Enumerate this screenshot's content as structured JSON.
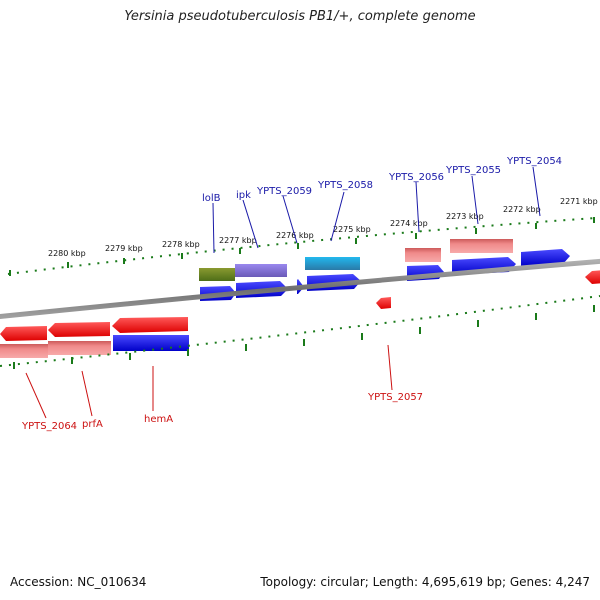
{
  "title": "Yersinia pseudotuberculosis PB1/+, complete genome",
  "footer": {
    "accession": "Accession: NC_010634",
    "summary": "Topology: circular; Length: 4,695,619 bp; Genes: 4,247"
  },
  "colors": {
    "forward_gene": "#0000dd",
    "reverse_gene": "#ee0000",
    "forward_label": "#1a1aa8",
    "reverse_label": "#cc1111",
    "ticks": "#1a7a1a",
    "backbone": "#8a8a8a"
  },
  "kbp_labels": [
    "2280 kbp",
    "2279 kbp",
    "2278 kbp",
    "2277 kbp",
    "2276 kbp",
    "2275 kbp",
    "2274 kbp",
    "2273 kbp",
    "2272 kbp",
    "2271 kbp"
  ],
  "forward_labels": [
    "lolB",
    "ipk",
    "YPTS_2059",
    "YPTS_2058",
    "YPTS_2056",
    "YPTS_2055",
    "YPTS_2054"
  ],
  "reverse_labels": [
    "YPTS_2064",
    "prfA",
    "hemA",
    "YPTS_2057"
  ]
}
